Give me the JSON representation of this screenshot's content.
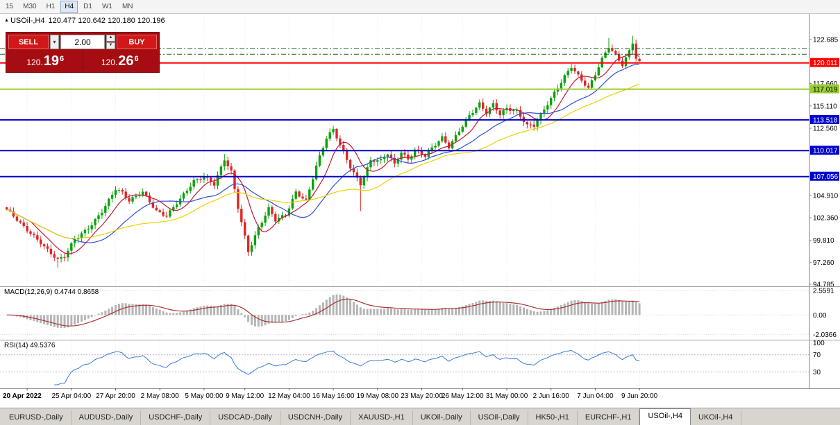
{
  "toolbar": {
    "timeframes": [
      {
        "label": "15",
        "active": false
      },
      {
        "label": "M30",
        "active": false
      },
      {
        "label": "H1",
        "active": false
      },
      {
        "label": "H4",
        "active": true
      },
      {
        "label": "D1",
        "active": false
      },
      {
        "label": "W1",
        "active": false
      },
      {
        "label": "MN",
        "active": false
      }
    ]
  },
  "chart_header": {
    "collapse_icon": "▲",
    "symbol": "USOil-,H4",
    "ohlc": "120.477 120.642 120.180 120.196"
  },
  "trade_panel": {
    "sell": "SELL",
    "buy": "BUY",
    "lot": "2.00",
    "combo_arrow": "▾",
    "spin_up": "▲",
    "spin_down": "▼",
    "bid": {
      "prefix": "120.",
      "pips": "19",
      "frac": "6"
    },
    "ask": {
      "prefix": "120.",
      "pips": "26",
      "frac": "6"
    }
  },
  "chart_data": {
    "type": "candlestick",
    "symbol": "USOil-,H4",
    "timeframe": "H4",
    "last_ohlc": {
      "open": 120.477,
      "high": 120.642,
      "low": 120.18,
      "close": 120.196
    },
    "candle_count": 187,
    "price_axis_top": 125.6,
    "price_axis_bottom": 94.55,
    "up_color": "#0aa30a",
    "down_color": "#dd2626",
    "close_waypoints": [
      [
        0,
        103.3
      ],
      [
        5,
        101.2
      ],
      [
        10,
        99.6
      ],
      [
        15,
        97.6
      ],
      [
        17,
        97.9
      ],
      [
        20,
        99.8
      ],
      [
        24,
        101.2
      ],
      [
        28,
        103.2
      ],
      [
        32,
        105.6
      ],
      [
        34,
        105.1
      ],
      [
        36,
        104.2
      ],
      [
        40,
        105.4
      ],
      [
        44,
        103.2
      ],
      [
        47,
        102.5
      ],
      [
        51,
        104.4
      ],
      [
        55,
        106.6
      ],
      [
        58,
        107.2
      ],
      [
        61,
        106.2
      ],
      [
        64,
        108.9
      ],
      [
        66,
        107.5
      ],
      [
        68,
        103.5
      ],
      [
        71,
        98.6
      ],
      [
        74,
        101.3
      ],
      [
        77,
        103.4
      ],
      [
        79,
        102.0
      ],
      [
        82,
        102.6
      ],
      [
        85,
        105.3
      ],
      [
        88,
        104.4
      ],
      [
        91,
        108.3
      ],
      [
        94,
        111.4
      ],
      [
        96,
        112.3
      ],
      [
        98,
        110.6
      ],
      [
        101,
        108.2
      ],
      [
        104,
        106.3
      ],
      [
        107,
        108.9
      ],
      [
        110,
        108.8
      ],
      [
        112,
        109.6
      ],
      [
        114,
        108.4
      ],
      [
        116,
        109.9
      ],
      [
        118,
        109.1
      ],
      [
        120,
        110.2
      ],
      [
        123,
        109.4
      ],
      [
        126,
        110.6
      ],
      [
        128,
        111.4
      ],
      [
        130,
        110.4
      ],
      [
        133,
        112.4
      ],
      [
        136,
        114.1
      ],
      [
        139,
        115.3
      ],
      [
        141,
        114.2
      ],
      [
        143,
        115.2
      ],
      [
        145,
        114.1
      ],
      [
        147,
        114.9
      ],
      [
        150,
        114.6
      ],
      [
        153,
        112.9
      ],
      [
        155,
        112.8
      ],
      [
        158,
        114.6
      ],
      [
        161,
        116.6
      ],
      [
        164,
        118.6
      ],
      [
        166,
        119.7
      ],
      [
        169,
        118.0
      ],
      [
        171,
        117.0
      ],
      [
        173,
        118.6
      ],
      [
        175,
        120.4
      ],
      [
        177,
        121.9
      ],
      [
        179,
        121.0
      ],
      [
        181,
        119.9
      ],
      [
        183,
        121.4
      ],
      [
        184,
        122.35
      ],
      [
        185,
        120.5
      ],
      [
        186,
        120.196
      ]
    ],
    "special_wicks": [
      [
        15,
        0,
        -0.6
      ],
      [
        64,
        0.5,
        0
      ],
      [
        104,
        0,
        -2.5
      ],
      [
        177,
        0.7,
        0
      ],
      [
        184,
        0.5,
        0
      ]
    ],
    "moving_averages": [
      {
        "name": "fast-ma",
        "period": 8,
        "color": "#c01830"
      },
      {
        "name": "medium-ma",
        "period": 20,
        "color": "#3050d0"
      },
      {
        "name": "slow-ma",
        "period": 40,
        "color": "#f0d000"
      }
    ],
    "levels": [
      {
        "price": 121.65,
        "color": "#1b5e20",
        "width": 1,
        "dash": "7 3 2 3",
        "badge": false,
        "label": "",
        "text": "#000000"
      },
      {
        "price": 121.0,
        "color": "#1b5e20",
        "width": 1,
        "dash": "7 3 2 3",
        "badge": false,
        "label": "",
        "text": "#000000"
      },
      {
        "price": 120.011,
        "color": "#ff0000",
        "width": 2,
        "dash": "",
        "badge": true,
        "label": "120.011",
        "text": "#ffffff"
      },
      {
        "price": 117.019,
        "color": "#9acd32",
        "width": 2,
        "dash": "",
        "badge": true,
        "label": "117.019",
        "text": "#000000"
      },
      {
        "price": 113.518,
        "color": "#0000cc",
        "width": 2,
        "dash": "",
        "badge": true,
        "label": "113.518",
        "text": "#ffffff"
      },
      {
        "price": 110.017,
        "color": "#0000cc",
        "width": 2,
        "dash": "",
        "badge": true,
        "label": "110.017",
        "text": "#ffffff"
      },
      {
        "price": 107.056,
        "color": "#0000cc",
        "width": 2,
        "dash": "",
        "badge": true,
        "label": "107.056",
        "text": "#ffffff"
      }
    ],
    "price_labels": [
      122.685,
      117.66,
      115.11,
      112.56,
      104.91,
      102.36,
      99.81,
      97.26,
      94.785
    ]
  },
  "macd": {
    "label": "MACD(12,26,9) 0.4744 0.8658",
    "fast": 12,
    "slow": 26,
    "signal": 9,
    "current_macd": 0.4744,
    "current_signal": 0.8658,
    "scale_top": 3.0,
    "scale_bottom": -2.6,
    "hist_color": "#b5b5b5",
    "signal_color": "#aa3333",
    "axis_labels": [
      {
        "v": 2.5591,
        "t": "2.5591"
      },
      {
        "v": 0,
        "t": "0.00"
      },
      {
        "v": -2.0366,
        "t": "-2.0366"
      }
    ]
  },
  "rsi": {
    "label": "RSI(14) 49.5376",
    "period": 14,
    "current": 49.5376,
    "color": "#3b7bd4",
    "level_lines": [
      70,
      30
    ],
    "axis_labels": [
      {
        "v": 100,
        "t": "100"
      },
      {
        "v": 70,
        "t": "70"
      },
      {
        "v": 30,
        "t": "30"
      }
    ]
  },
  "time_axis": {
    "labels": [
      {
        "t": "20 Apr 2022",
        "i": 6,
        "bold": true
      },
      {
        "t": "25 Apr 04:00",
        "i": 19,
        "bold": false
      },
      {
        "t": "27 Apr 20:00",
        "i": 32,
        "bold": false
      },
      {
        "t": "2 May 08:00",
        "i": 45,
        "bold": false
      },
      {
        "t": "5 May 00:00",
        "i": 58,
        "bold": false
      },
      {
        "t": "9 May 12:00",
        "i": 70,
        "bold": false
      },
      {
        "t": "12 May 04:00",
        "i": 83,
        "bold": false
      },
      {
        "t": "16 May 16:00",
        "i": 96,
        "bold": false
      },
      {
        "t": "19 May 08:00",
        "i": 109,
        "bold": false
      },
      {
        "t": "23 May 20:00",
        "i": 122,
        "bold": false
      },
      {
        "t": "26 May 12:00",
        "i": 134,
        "bold": false
      },
      {
        "t": "31 May 00:00",
        "i": 147,
        "bold": false
      },
      {
        "t": "2 Jun 16:00",
        "i": 160,
        "bold": false
      },
      {
        "t": "7 Jun 04:00",
        "i": 173,
        "bold": false
      },
      {
        "t": "9 Jun 20:00",
        "i": 186,
        "bold": false
      }
    ]
  },
  "tabs": {
    "active_index": 10,
    "items": [
      "EURUSD-,Daily",
      "AUDUSD-,Daily",
      "USDCHF-,Daily",
      "USDCAD-,Daily",
      "USDCNH-,Daily",
      "XAUUSD-,H1",
      "UKOil-,Daily",
      "USOil-,Daily",
      "HK50-,H1",
      "EURCHF-,H1",
      "USOil-,H4",
      "UKOil-,H4"
    ]
  }
}
